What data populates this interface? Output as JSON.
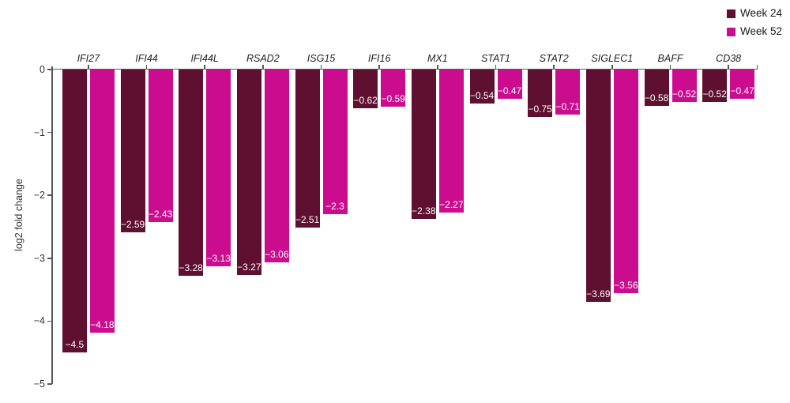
{
  "legend": {
    "items": [
      {
        "label": "Week 24",
        "color": "#5f0f30"
      },
      {
        "label": "Week 52",
        "color": "#cb0c8e"
      }
    ]
  },
  "chart_data": {
    "type": "bar",
    "title": "",
    "xlabel": "",
    "ylabel": "log2 fold change",
    "ylim": [
      -5,
      0
    ],
    "yticks": [
      0,
      -1,
      -2,
      -3,
      -4,
      -5
    ],
    "ytick_labels": [
      "0",
      "−1",
      "−2",
      "−3",
      "−4",
      "−5"
    ],
    "grid": false,
    "legend_position": "top-right",
    "value_label_style": "white text inside bar near bottom",
    "categories": [
      "IFI27",
      "IFI44",
      "IFI44L",
      "RSAD2",
      "ISG15",
      "IFI16",
      "MX1",
      "STAT1",
      "STAT2",
      "SIGLEC1",
      "BAFF",
      "CD38"
    ],
    "series": [
      {
        "name": "Week 24",
        "color": "#5f0f30",
        "values": [
          -4.5,
          -2.59,
          -3.28,
          -3.27,
          -2.51,
          -0.62,
          -2.38,
          -0.54,
          -0.75,
          -3.69,
          -0.58,
          -0.52
        ],
        "labels": [
          "−4.5",
          "−2.59",
          "−3.28",
          "−3.27",
          "−2.51",
          "−0.62",
          "−2.38",
          "−0.54",
          "−0.75",
          "−3.69",
          "−0.58",
          "−0.52"
        ]
      },
      {
        "name": "Week 52",
        "color": "#cb0c8e",
        "values": [
          -4.18,
          -2.43,
          -3.13,
          -3.06,
          -2.3,
          -0.59,
          -2.27,
          -0.47,
          -0.71,
          -3.56,
          -0.52,
          -0.47
        ],
        "labels": [
          "−4.18",
          "−2.43",
          "−3.13",
          "−3.06",
          "−2.3",
          "−0.59",
          "−2.27",
          "−0.47",
          "−0.71",
          "−3.56",
          "−0.52",
          "−0.47"
        ]
      }
    ]
  }
}
